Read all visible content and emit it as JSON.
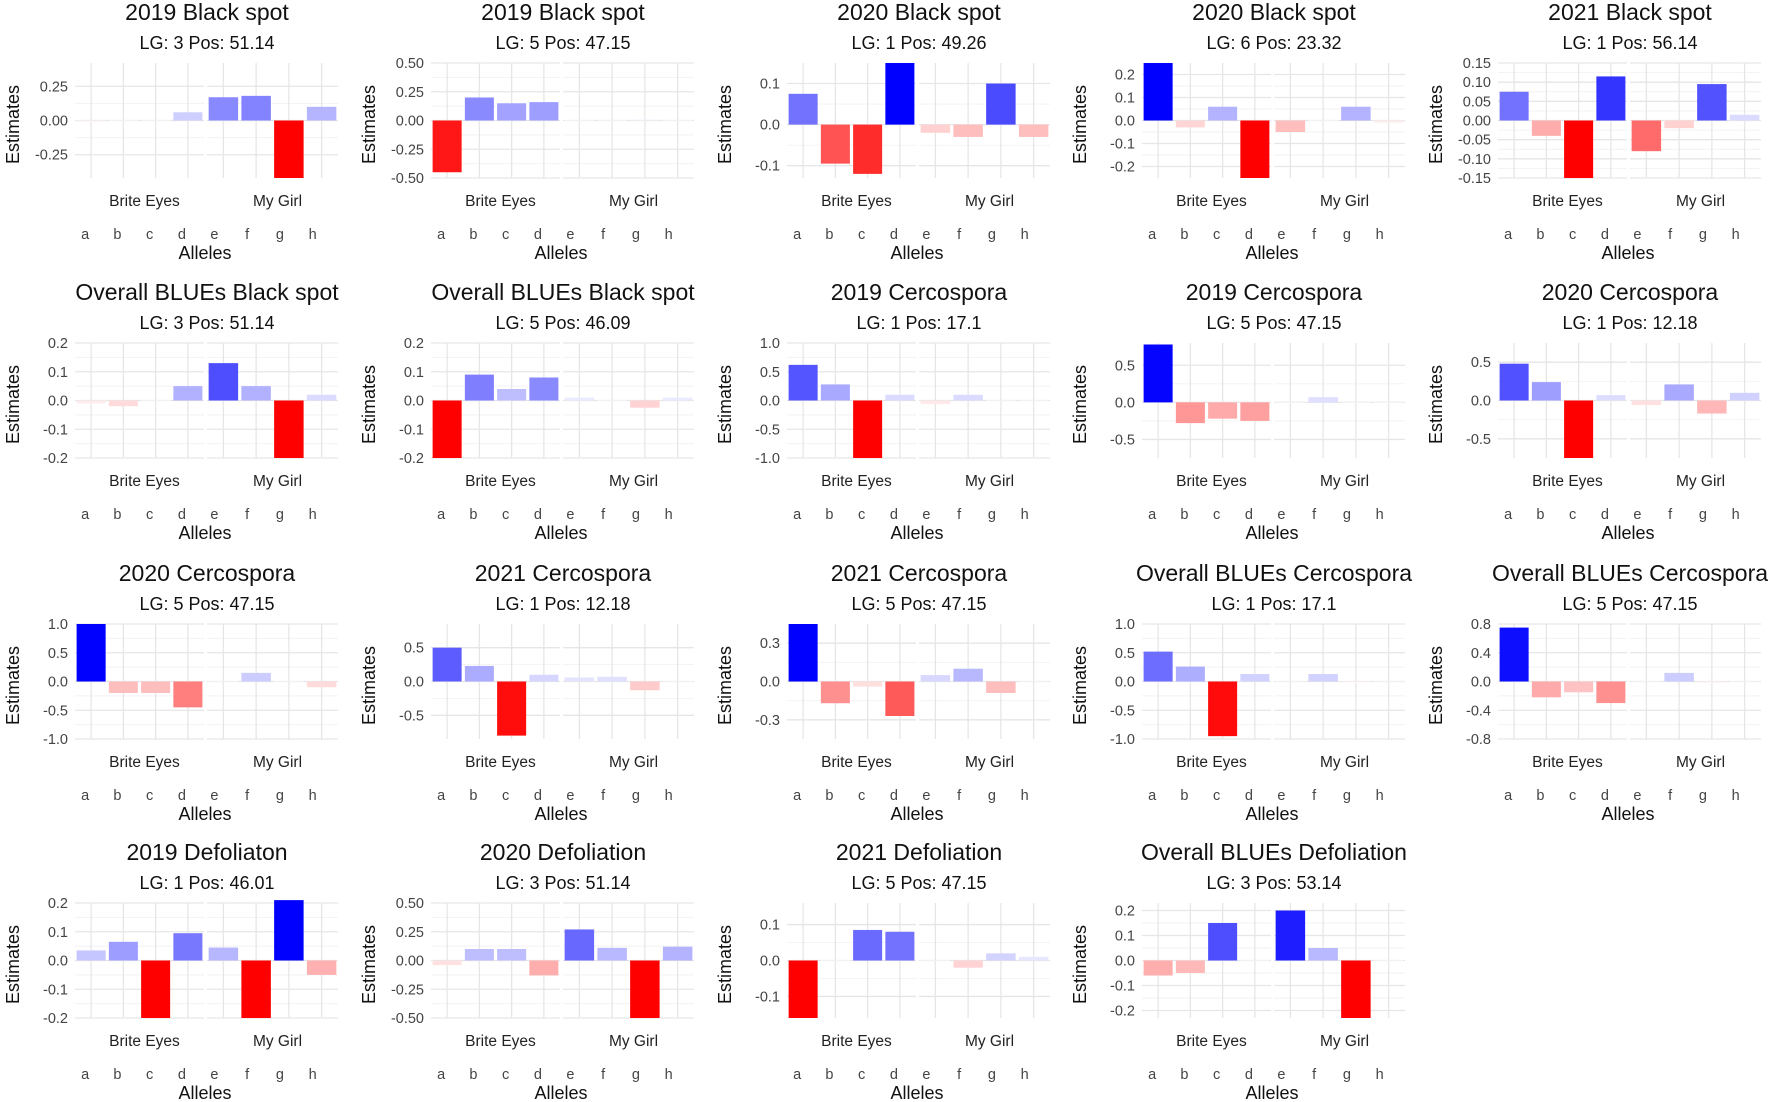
{
  "chart_data": {
    "type": "bar",
    "layout": "faceted small multiples",
    "xlabel": "Alleles",
    "ylabel": "Estimates",
    "facets": [
      "Brite Eyes",
      "My Girl"
    ],
    "alleles": {
      "Brite Eyes": [
        "a",
        "b",
        "c",
        "d"
      ],
      "My Girl": [
        "e",
        "f",
        "g",
        "h"
      ]
    },
    "color_scale": {
      "low": "#ff0000",
      "mid": "#ffffff",
      "high": "#0000ff"
    },
    "panels": [
      {
        "title": "2019 Black spot",
        "subtitle": "LG: 3 Pos: 51.14",
        "ylim": [
          -0.42,
          0.42
        ],
        "yticks": [
          -0.25,
          0,
          0.25
        ],
        "ytick_labels": [
          "-0.25",
          "0.00",
          "0.25"
        ],
        "values": [
          -0.01,
          0.0,
          0.0,
          0.06,
          0.17,
          0.18,
          -0.42,
          0.1
        ]
      },
      {
        "title": "2019 Black spot",
        "subtitle": "LG: 5 Pos: 47.15",
        "ylim": [
          -0.5,
          0.5
        ],
        "yticks": [
          -0.5,
          -0.25,
          0,
          0.25,
          0.5
        ],
        "ytick_labels": [
          "-0.50",
          "-0.25",
          "0.00",
          "0.25",
          "0.50"
        ],
        "values": [
          -0.45,
          0.2,
          0.15,
          0.16,
          0.0,
          0.0,
          0.01,
          0.0
        ]
      },
      {
        "title": "2020 Black spot",
        "subtitle": "LG: 1 Pos: 49.26",
        "ylim": [
          -0.13,
          0.15
        ],
        "yticks": [
          -0.1,
          0,
          0.1
        ],
        "ytick_labels": [
          "-0.1",
          "0.0",
          "0.1"
        ],
        "values": [
          0.075,
          -0.095,
          -0.12,
          0.15,
          -0.02,
          -0.03,
          0.1,
          -0.03
        ]
      },
      {
        "title": "2020 Black spot",
        "subtitle": "LG: 6 Pos: 23.32",
        "ylim": [
          -0.25,
          0.25
        ],
        "yticks": [
          -0.2,
          -0.1,
          0,
          0.1,
          0.2
        ],
        "ytick_labels": [
          "-0.2",
          "-0.1",
          "0.0",
          "0.1",
          "0.2"
        ],
        "values": [
          0.25,
          -0.03,
          0.06,
          -0.25,
          -0.05,
          0.0,
          0.06,
          -0.01
        ]
      },
      {
        "title": "2021 Black spot",
        "subtitle": "LG: 1 Pos: 56.14",
        "ylim": [
          -0.15,
          0.15
        ],
        "yticks": [
          -0.15,
          -0.1,
          -0.05,
          0,
          0.05,
          0.1,
          0.15
        ],
        "ytick_labels": [
          "-0.15",
          "-0.10",
          "-0.05",
          "0.00",
          "0.05",
          "0.10",
          "0.15"
        ],
        "values": [
          0.075,
          -0.04,
          -0.15,
          0.115,
          -0.08,
          -0.02,
          0.095,
          0.015
        ]
      },
      {
        "title": "Overall BLUEs Black spot",
        "subtitle": "LG: 3 Pos: 51.14",
        "ylim": [
          -0.2,
          0.2
        ],
        "yticks": [
          -0.2,
          -0.1,
          0,
          0.1,
          0.2
        ],
        "ytick_labels": [
          "-0.2",
          "-0.1",
          "0.0",
          "0.1",
          "0.2"
        ],
        "values": [
          -0.01,
          -0.02,
          0.0,
          0.05,
          0.13,
          0.05,
          -0.2,
          0.02
        ]
      },
      {
        "title": "Overall BLUEs Black spot",
        "subtitle": "LG: 5 Pos: 46.09",
        "ylim": [
          -0.2,
          0.2
        ],
        "yticks": [
          -0.2,
          -0.1,
          0,
          0.1,
          0.2
        ],
        "ytick_labels": [
          "-0.2",
          "-0.1",
          "0.0",
          "0.1",
          "0.2"
        ],
        "values": [
          -0.2,
          0.09,
          0.04,
          0.08,
          0.01,
          0.0,
          -0.025,
          0.01
        ]
      },
      {
        "title": "2019 Cercospora",
        "subtitle": "LG: 1 Pos: 17.1",
        "ylim": [
          -1.0,
          1.0
        ],
        "yticks": [
          -1.0,
          -0.5,
          0,
          0.5,
          1.0
        ],
        "ytick_labels": [
          "-1.0",
          "-0.5",
          "0.0",
          "0.5",
          "1.0"
        ],
        "values": [
          0.62,
          0.28,
          -1.0,
          0.1,
          -0.06,
          0.1,
          0.0,
          0.0
        ]
      },
      {
        "title": "2019 Cercospora",
        "subtitle": "LG: 5 Pos: 47.15",
        "ylim": [
          -0.75,
          0.8
        ],
        "yticks": [
          -0.5,
          0,
          0.5
        ],
        "ytick_labels": [
          "-0.5",
          "0.0",
          "0.5"
        ],
        "values": [
          0.78,
          -0.28,
          -0.22,
          -0.25,
          0.0,
          0.07,
          0.0,
          0.0
        ]
      },
      {
        "title": "2020 Cercospora",
        "subtitle": "LG: 1 Pos: 12.18",
        "ylim": [
          -0.75,
          0.75
        ],
        "yticks": [
          -0.5,
          0,
          0.5
        ],
        "ytick_labels": [
          "-0.5",
          "0.0",
          "0.5"
        ],
        "values": [
          0.48,
          0.24,
          -0.75,
          0.07,
          -0.06,
          0.21,
          -0.17,
          0.1
        ]
      },
      {
        "title": "2020 Cercospora",
        "subtitle": "LG: 5 Pos: 47.15",
        "ylim": [
          -1.0,
          1.0
        ],
        "yticks": [
          -1.0,
          -0.5,
          0,
          0.5,
          1.0
        ],
        "ytick_labels": [
          "-1.0",
          "-0.5",
          "0.0",
          "0.5",
          "1.0"
        ],
        "values": [
          1.0,
          -0.2,
          -0.2,
          -0.45,
          0.0,
          0.15,
          0.0,
          -0.1
        ]
      },
      {
        "title": "2021 Cercospora",
        "subtitle": "LG: 1 Pos: 12.18",
        "ylim": [
          -0.85,
          0.85
        ],
        "yticks": [
          -0.5,
          0,
          0.5
        ],
        "ytick_labels": [
          "-0.5",
          "0.0",
          "0.5"
        ],
        "values": [
          0.5,
          0.23,
          -0.8,
          0.1,
          0.06,
          0.07,
          -0.13,
          0.0
        ]
      },
      {
        "title": "2021 Cercospora",
        "subtitle": "LG: 5 Pos: 47.15",
        "ylim": [
          -0.45,
          0.45
        ],
        "yticks": [
          -0.3,
          0,
          0.3
        ],
        "ytick_labels": [
          "-0.3",
          "0.0",
          "0.3"
        ],
        "values": [
          0.45,
          -0.17,
          -0.04,
          -0.27,
          0.05,
          0.1,
          -0.09,
          0.0
        ]
      },
      {
        "title": "Overall BLUEs Cercospora",
        "subtitle": "LG: 1 Pos: 17.1",
        "ylim": [
          -1.0,
          1.0
        ],
        "yticks": [
          -1.0,
          -0.5,
          0,
          0.5,
          1.0
        ],
        "ytick_labels": [
          "-1.0",
          "-0.5",
          "0.0",
          "0.5",
          "1.0"
        ],
        "values": [
          0.52,
          0.26,
          -0.95,
          0.13,
          0.0,
          0.13,
          -0.02,
          0.0
        ]
      },
      {
        "title": "Overall BLUEs Cercospora",
        "subtitle": "LG: 5 Pos: 47.15",
        "ylim": [
          -0.8,
          0.8
        ],
        "yticks": [
          -0.8,
          -0.4,
          0,
          0.4,
          0.8
        ],
        "ytick_labels": [
          "-0.8",
          "-0.4",
          "0.0",
          "0.4",
          "0.8"
        ],
        "values": [
          0.75,
          -0.22,
          -0.15,
          -0.3,
          0.0,
          0.12,
          -0.02,
          -0.01
        ]
      },
      {
        "title": "2019 Defoliaton",
        "subtitle": "LG: 1 Pos: 46.01",
        "ylim": [
          -0.2,
          0.2
        ],
        "yticks": [
          -0.2,
          -0.1,
          0,
          0.1,
          0.2
        ],
        "ytick_labels": [
          "-0.2",
          "-0.1",
          "0.0",
          "0.1",
          "0.2"
        ],
        "values": [
          0.035,
          0.065,
          -0.2,
          0.095,
          0.045,
          -0.2,
          0.21,
          -0.05
        ]
      },
      {
        "title": "2020 Defoliation",
        "subtitle": "LG: 3 Pos: 51.14",
        "ylim": [
          -0.5,
          0.5
        ],
        "yticks": [
          -0.5,
          -0.25,
          0,
          0.25,
          0.5
        ],
        "ytick_labels": [
          "-0.50",
          "-0.25",
          "0.00",
          "0.25",
          "0.50"
        ],
        "values": [
          -0.04,
          0.1,
          0.1,
          -0.13,
          0.27,
          0.11,
          -0.5,
          0.12
        ]
      },
      {
        "title": "2021 Defoliation",
        "subtitle": "LG: 5 Pos: 47.15",
        "ylim": [
          -0.16,
          0.16
        ],
        "yticks": [
          -0.1,
          0,
          0.1
        ],
        "ytick_labels": [
          "-0.1",
          "0.0",
          "0.1"
        ],
        "values": [
          -0.16,
          0.0,
          0.085,
          0.08,
          0.0,
          -0.02,
          0.02,
          0.01
        ]
      },
      {
        "title": "Overall BLUEs Defoliation",
        "subtitle": "LG: 3 Pos: 53.14",
        "ylim": [
          -0.23,
          0.23
        ],
        "yticks": [
          -0.2,
          -0.1,
          0,
          0.1,
          0.2
        ],
        "ytick_labels": [
          "-0.2",
          "-0.1",
          "0.0",
          "0.1",
          "0.2"
        ],
        "values": [
          -0.06,
          -0.05,
          0.15,
          0.0,
          0.2,
          0.05,
          -0.23,
          0.0
        ]
      }
    ]
  }
}
